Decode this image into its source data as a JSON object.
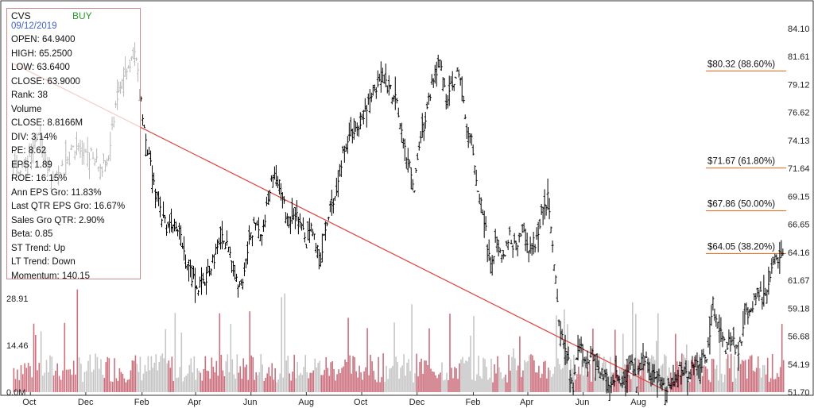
{
  "info_panel": {
    "symbol": "CVS",
    "rating": "BUY",
    "date": "09/12/2019",
    "lines": [
      "OPEN: 64.9400",
      "HIGH: 65.2500",
      "LOW: 63.6400",
      "CLOSE: 63.9000",
      "Rank: 38",
      "Volume",
      "CLOSE: 8.8166M",
      "DIV: 3.14%",
      "PE: 8.62",
      "EPS: 1.89",
      "ROE: 16.15%",
      "Ann EPS Gro: 11.83%",
      "Last QTR EPS Gro: 16.67%",
      "Sales Gro QTR: 2.90%",
      "Beta: 0.85",
      "ST Trend: Up",
      "LT Trend: Down",
      "Momentum: 140.15"
    ]
  },
  "colors": {
    "price_bars": "#000000",
    "volume_up": "#c8616f",
    "volume_down": "#c0c0c0",
    "trend_line": "#e0423c",
    "fib_lines": "#e8762a",
    "axis_border": "#333333"
  },
  "chart_data": {
    "type": "line",
    "style": "ohlc-bars",
    "x_tick_labels": [
      "Oct",
      "Dec",
      "Feb",
      "Apr",
      "Jun",
      "Aug",
      "Oct",
      "Dec",
      "Feb",
      "Apr",
      "Jun",
      "Aug"
    ],
    "y_tick_labels": [
      "84.10",
      "81.61",
      "79.12",
      "76.62",
      "74.13",
      "71.64",
      "69.15",
      "66.65",
      "64.16",
      "61.67",
      "59.18",
      "56.68",
      "54.19",
      "51.70"
    ],
    "ylim": [
      51.7,
      84.1
    ],
    "volume_tick_labels": [
      "28.91",
      "14.46",
      "0.0M"
    ],
    "volume_ylim": [
      0,
      43.37
    ],
    "grid": false,
    "price_path": [
      [
        "2018-09-12",
        71.5
      ],
      [
        "2018-09-26",
        72.0
      ],
      [
        "2018-10-10",
        74.5
      ],
      [
        "2018-10-24",
        71.0
      ],
      [
        "2018-11-07",
        71.5
      ],
      [
        "2018-11-21",
        74.0
      ],
      [
        "2018-12-05",
        73.0
      ],
      [
        "2018-12-19",
        71.5
      ],
      [
        "2018-12-26",
        72.5
      ],
      [
        "2019-01-03",
        77.5
      ],
      [
        "2019-01-10",
        79.5
      ],
      [
        "2019-01-17",
        80.5
      ],
      [
        "2019-01-24",
        82.5
      ],
      [
        "2019-01-31",
        77.5
      ],
      [
        "2019-02-07",
        73.5
      ],
      [
        "2019-02-14",
        70.0
      ],
      [
        "2019-02-21",
        68.0
      ],
      [
        "2019-02-28",
        66.5
      ],
      [
        "2019-03-07",
        67.0
      ],
      [
        "2019-03-14",
        66.5
      ],
      [
        "2019-03-21",
        63.5
      ],
      [
        "2019-03-28",
        62.0
      ],
      [
        "2019-04-04",
        61.0
      ],
      [
        "2019-04-11",
        61.5
      ],
      [
        "2019-04-18",
        63.0
      ],
      [
        "2019-04-25",
        64.5
      ],
      [
        "2019-05-02",
        65.5
      ],
      [
        "2019-05-09",
        64.0
      ],
      [
        "2019-05-16",
        61.5
      ],
      [
        "2019-05-23",
        62.0
      ],
      [
        "2019-05-30",
        65.0
      ],
      [
        "2019-06-06",
        67.0
      ],
      [
        "2019-06-13",
        66.0
      ],
      [
        "2019-06-20",
        69.0
      ],
      [
        "2019-06-27",
        71.5
      ],
      [
        "2019-07-04",
        70.0
      ],
      [
        "2019-07-11",
        67.0
      ],
      [
        "2019-07-18",
        68.0
      ],
      [
        "2019-07-25",
        66.5
      ],
      [
        "2019-08-01",
        65.0
      ],
      [
        "2019-08-08",
        66.5
      ],
      [
        "2019-08-15",
        63.5
      ],
      [
        "2019-08-22",
        66.0
      ],
      [
        "2019-08-29",
        68.5
      ],
      [
        "2019-09-05",
        70.5
      ],
      [
        "2019-09-12",
        73.5
      ],
      [
        "2019-09-19",
        74.5
      ],
      [
        "2019-09-26",
        75.5
      ],
      [
        "2019-10-03",
        76.5
      ],
      [
        "2019-10-10",
        78.0
      ],
      [
        "2019-10-17",
        79.0
      ],
      [
        "2019-10-24",
        79.5
      ],
      [
        "2019-10-31",
        79.0
      ],
      [
        "2019-11-07",
        78.0
      ],
      [
        "2019-11-14",
        74.5
      ],
      [
        "2019-11-21",
        72.5
      ],
      [
        "2019-11-28",
        70.0
      ],
      [
        "2019-12-05",
        74.0
      ],
      [
        "2019-12-12",
        77.0
      ],
      [
        "2019-12-19",
        80.0
      ],
      [
        "2019-12-26",
        81.0
      ],
      [
        "2020-01-02",
        78.0
      ],
      [
        "2020-01-09",
        79.0
      ],
      [
        "2020-01-16",
        80.5
      ],
      [
        "2020-01-23",
        76.0
      ],
      [
        "2020-01-30",
        74.0
      ],
      [
        "2020-02-06",
        70.0
      ],
      [
        "2020-02-13",
        67.0
      ],
      [
        "2020-02-20",
        63.0
      ],
      [
        "2020-02-27",
        65.5
      ],
      [
        "2020-03-05",
        64.0
      ],
      [
        "2020-03-12",
        65.5
      ],
      [
        "2020-03-19",
        64.5
      ],
      [
        "2020-03-26",
        66.0
      ],
      [
        "2020-04-02",
        64.5
      ],
      [
        "2020-04-09",
        65.0
      ],
      [
        "2020-04-16",
        67.5
      ],
      [
        "2020-04-23",
        69.0
      ],
      [
        "2020-04-30",
        63.0
      ],
      [
        "2020-05-07",
        57.0
      ],
      [
        "2020-05-14",
        55.0
      ],
      [
        "2020-05-21",
        52.0
      ],
      [
        "2020-05-28",
        56.5
      ],
      [
        "2020-06-04",
        54.5
      ],
      [
        "2020-06-11",
        55.0
      ],
      [
        "2020-06-18",
        53.5
      ],
      [
        "2020-06-25",
        53.0
      ],
      [
        "2020-07-02",
        52.5
      ],
      [
        "2020-07-09",
        53.5
      ],
      [
        "2020-07-16",
        52.5
      ],
      [
        "2020-07-23",
        54.5
      ],
      [
        "2020-07-30",
        52.5
      ],
      [
        "2020-08-06",
        55.5
      ],
      [
        "2020-08-13",
        53.5
      ],
      [
        "2020-08-20",
        53.0
      ],
      [
        "2020-08-27",
        52.5
      ],
      [
        "2020-09-03",
        52.0
      ],
      [
        "2020-09-10",
        53.0
      ],
      [
        "2020-09-17",
        54.0
      ],
      [
        "2020-09-24",
        53.0
      ],
      [
        "2020-10-01",
        54.5
      ],
      [
        "2020-10-08",
        54.0
      ],
      [
        "2020-10-15",
        55.0
      ],
      [
        "2020-10-22",
        59.5
      ],
      [
        "2020-10-29",
        57.0
      ],
      [
        "2020-11-05",
        55.5
      ],
      [
        "2020-11-12",
        56.5
      ],
      [
        "2020-11-19",
        55.0
      ],
      [
        "2020-11-26",
        58.5
      ],
      [
        "2020-12-03",
        59.0
      ],
      [
        "2020-12-10",
        61.0
      ],
      [
        "2020-12-17",
        60.0
      ],
      [
        "2020-12-24",
        62.5
      ],
      [
        "2020-12-31",
        63.5
      ],
      [
        "2021-01-07",
        64.5
      ]
    ],
    "trend_line": {
      "from": [
        "2018-09-12",
        81.0
      ],
      "to": [
        "2020-09-03",
        51.7
      ]
    },
    "fib_levels": [
      {
        "label": "$80.32 (88.60%)",
        "value": 80.32
      },
      {
        "label": "$71.67 (61.80%)",
        "value": 71.67
      },
      {
        "label": "$67.86 (50.00%)",
        "value": 67.86
      },
      {
        "label": "$64.05 (38.20%)",
        "value": 64.05
      }
    ]
  }
}
